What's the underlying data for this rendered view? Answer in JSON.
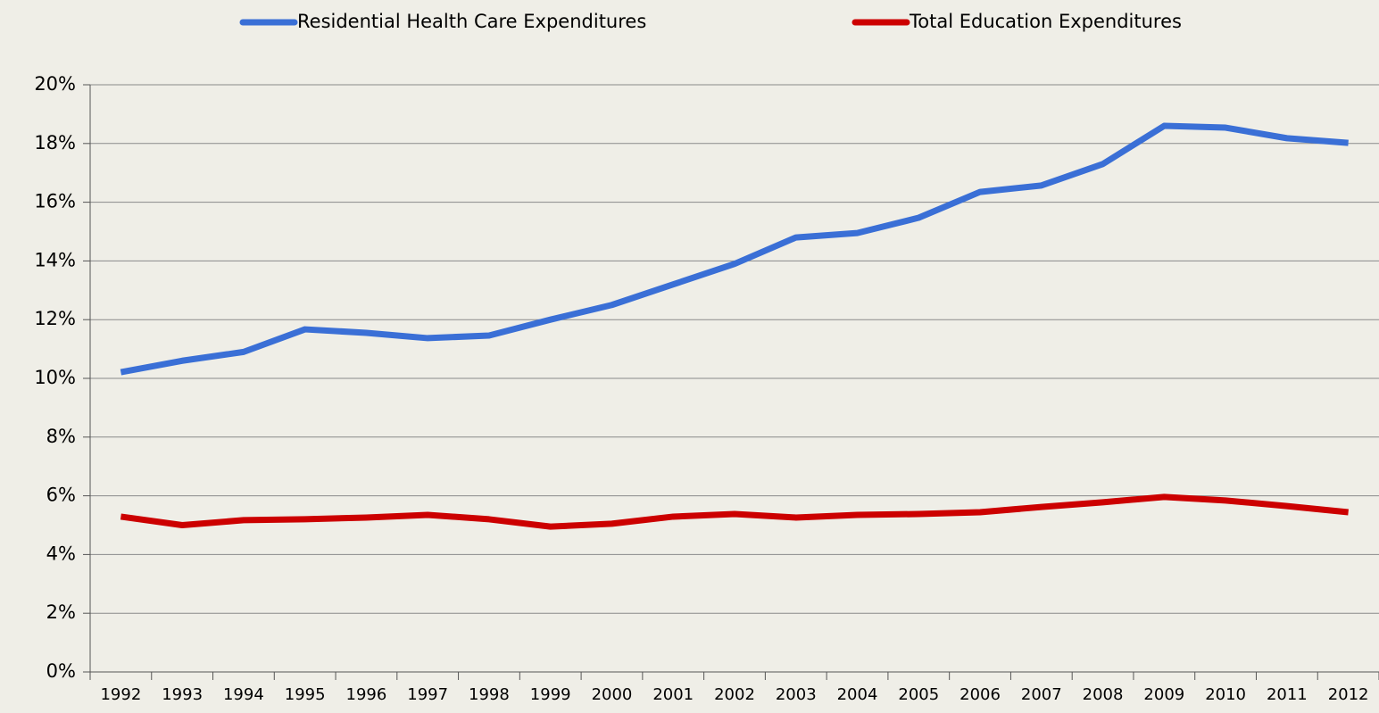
{
  "chart_data": {
    "type": "line",
    "categories": [
      "1992",
      "1993",
      "1994",
      "1995",
      "1996",
      "1997",
      "1998",
      "1999",
      "2000",
      "2001",
      "2002",
      "2003",
      "2004",
      "2005",
      "2006",
      "2007",
      "2008",
      "2009",
      "2010",
      "2011",
      "2012"
    ],
    "series": [
      {
        "name": "Residential Health Care Expenditures",
        "color": "#3a6fd6",
        "values": [
          10.21,
          10.6,
          10.9,
          11.67,
          11.55,
          11.37,
          11.46,
          12.0,
          12.5,
          13.2,
          13.9,
          14.8,
          14.95,
          15.47,
          16.35,
          16.57,
          17.3,
          18.6,
          18.54,
          18.18,
          18.02
        ]
      },
      {
        "name": "Total Education Expenditures",
        "color": "#cc0000",
        "values": [
          5.29,
          5.0,
          5.17,
          5.2,
          5.26,
          5.35,
          5.2,
          4.95,
          5.05,
          5.29,
          5.38,
          5.26,
          5.35,
          5.38,
          5.44,
          5.62,
          5.78,
          5.96,
          5.84,
          5.65,
          5.44
        ]
      }
    ],
    "ylim": [
      0,
      20
    ],
    "yticks": [
      {
        "value": 0,
        "label": "0%"
      },
      {
        "value": 2,
        "label": "2%"
      },
      {
        "value": 4,
        "label": "4%"
      },
      {
        "value": 6,
        "label": "6%"
      },
      {
        "value": 8,
        "label": "8%"
      },
      {
        "value": 10,
        "label": "10%"
      },
      {
        "value": 12,
        "label": "12%"
      },
      {
        "value": 14,
        "label": "14%"
      },
      {
        "value": 16,
        "label": "16%"
      },
      {
        "value": 18,
        "label": "18%"
      },
      {
        "value": 20,
        "label": "20%"
      }
    ],
    "grid": true,
    "legend": "top"
  }
}
